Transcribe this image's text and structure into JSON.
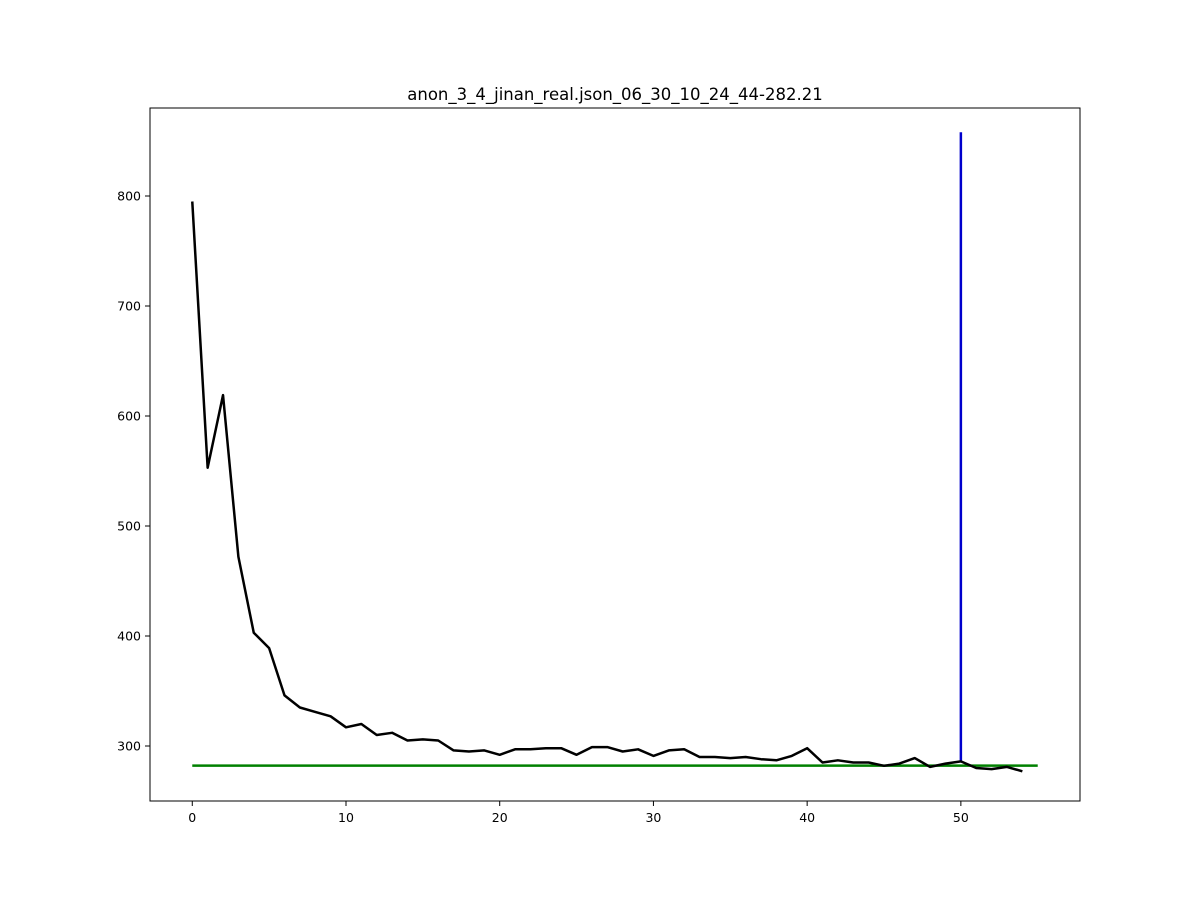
{
  "chart_data": {
    "type": "line",
    "title": "anon_3_4_jinan_real.json_06_30_10_24_44-282.21",
    "xlabel": "",
    "ylabel": "",
    "xlim": [
      -2.75,
      57.75
    ],
    "ylim": [
      250,
      880
    ],
    "grid": false,
    "legend": "none",
    "x_ticks": [
      0,
      10,
      20,
      30,
      40,
      50
    ],
    "x_tick_labels": [
      "0",
      "10",
      "20",
      "30",
      "40",
      "50"
    ],
    "y_ticks": [
      300,
      400,
      500,
      600,
      700,
      800
    ],
    "y_tick_labels": [
      "300",
      "400",
      "500",
      "600",
      "700",
      "800"
    ],
    "series": [
      {
        "color": "#000000",
        "x": [
          0,
          1,
          2,
          3,
          4,
          5,
          6,
          7,
          8,
          9,
          10,
          11,
          12,
          13,
          14,
          15,
          16,
          17,
          18,
          19,
          20,
          21,
          22,
          23,
          24,
          25,
          26,
          27,
          28,
          29,
          30,
          31,
          32,
          33,
          34,
          35,
          36,
          37,
          38,
          39,
          40,
          41,
          42,
          43,
          44,
          45,
          46,
          47,
          48,
          49,
          50,
          51,
          52,
          53,
          54
        ],
        "values": [
          795,
          553,
          619,
          472,
          403,
          389,
          346,
          335,
          331,
          327,
          317,
          320,
          310,
          312,
          305,
          306,
          305,
          296,
          295,
          296,
          292,
          297,
          297,
          298,
          298,
          292,
          299,
          299,
          295,
          297,
          291,
          296,
          297,
          290,
          290,
          289,
          290,
          288,
          287,
          291,
          298,
          285,
          287,
          285,
          285,
          282,
          284,
          289,
          281,
          284,
          286,
          280,
          279,
          281,
          277
        ]
      }
    ],
    "reference_lines": [
      {
        "orientation": "horizontal",
        "value": 282.21,
        "x_range": [
          0,
          55
        ],
        "color": "#008000"
      },
      {
        "orientation": "vertical",
        "value": 50,
        "y_range": [
          286,
          858
        ],
        "color": "#0000cc"
      }
    ]
  }
}
